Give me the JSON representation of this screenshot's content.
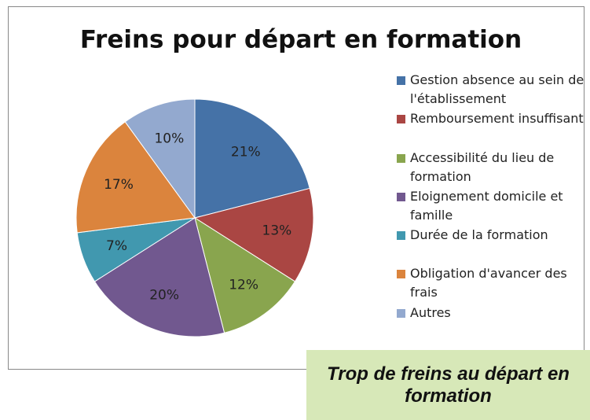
{
  "chart_data": {
    "type": "pie",
    "title": "Freins pour départ en formation",
    "categories": [
      "Gestion absence au sein de l'établissement",
      "Remboursement insuffisant",
      "Accessibilité du lieu de formation",
      "Eloignement domicile et famille",
      "Durée de la formation",
      "Obligation d'avancer des frais",
      "Autres"
    ],
    "values": [
      21,
      13,
      12,
      20,
      7,
      17,
      10
    ],
    "value_labels": [
      "21%",
      "13%",
      "12%",
      "20%",
      "7%",
      "17%",
      "10%"
    ],
    "colors": [
      "#4572a7",
      "#aa4643",
      "#89a54e",
      "#71588f",
      "#4198af",
      "#db843d",
      "#93a9cf"
    ],
    "legend": "right",
    "annotation": "Trop de freins au départ en formation"
  }
}
